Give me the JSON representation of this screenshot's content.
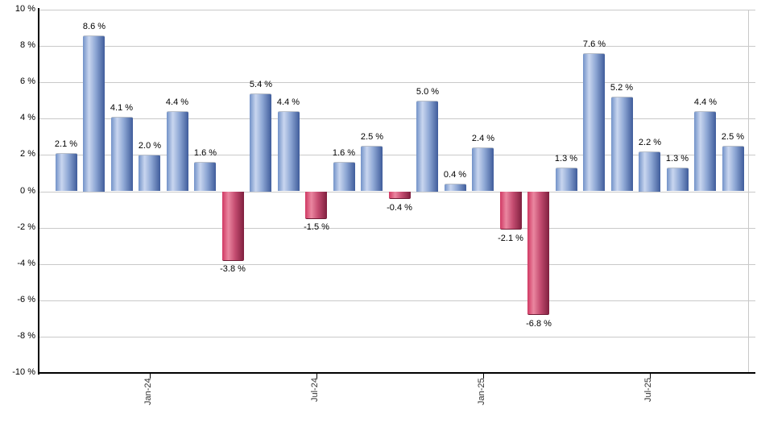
{
  "chart_data": {
    "type": "bar",
    "title": "",
    "unit": "%",
    "values": [
      2.1,
      8.6,
      4.1,
      2.0,
      4.4,
      1.6,
      -3.8,
      5.4,
      4.4,
      -1.5,
      1.6,
      2.5,
      -0.4,
      5.0,
      0.4,
      2.4,
      -2.1,
      -6.8,
      1.3,
      7.6,
      5.2,
      2.2,
      1.3,
      4.4,
      2.5
    ],
    "bar_count": 25,
    "bar_value_labels": [
      "2.1 %",
      "8.6 %",
      "4.1 %",
      "2.0 %",
      "4.4 %",
      "1.6 %",
      "-3.8 %",
      "5.4 %",
      "4.4 %",
      "-1.5 %",
      "1.6 %",
      "2.5 %",
      "-0.4 %",
      "5.0 %",
      "0.4 %",
      "2.4 %",
      "-2.1 %",
      "-6.8 %",
      "1.3 %",
      "7.6 %",
      "5.2 %",
      "2.2 %",
      "1.3 %",
      "4.4 %",
      "2.5 %"
    ],
    "x_tick_labels": [
      {
        "bar_index": 3,
        "label": "Jan-24"
      },
      {
        "bar_index": 9,
        "label": "Jul-24"
      },
      {
        "bar_index": 15,
        "label": "Jan-25"
      },
      {
        "bar_index": 21,
        "label": "Jul-25"
      }
    ],
    "y_axis": {
      "min": -10,
      "max": 10,
      "step": 2,
      "tick_labels": [
        "10 %",
        "8 %",
        "6 %",
        "4 %",
        "2 %",
        "0 %",
        "-2 %",
        "-4 %",
        "-6 %",
        "-8 %",
        "-10 %"
      ]
    },
    "grid": {
      "horizontal": true,
      "vertical": false
    },
    "legend": "none",
    "colors": {
      "positive_bar_left": "#7292c8",
      "positive_bar_highlight": "#c9d6ef",
      "positive_bar_mid": "#8fa8d5",
      "positive_bar_right": "#3f5c9b",
      "negative_bar_left": "#d03863",
      "negative_bar_highlight": "#ea87a0",
      "negative_bar_mid": "#c64e72",
      "negative_bar_right": "#7f1f3e",
      "gridline": "#c9c9c9",
      "axis": "#000000",
      "text": "#000000"
    }
  }
}
